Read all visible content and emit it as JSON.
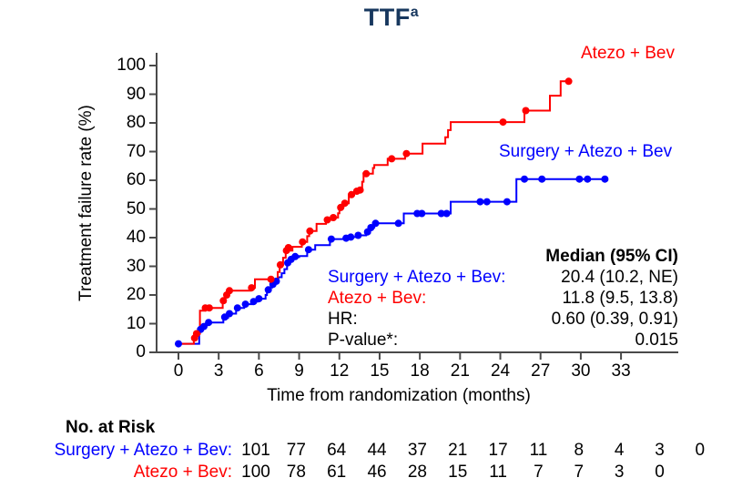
{
  "figure": {
    "title": "TTF",
    "title_superscript": "a"
  },
  "colors": {
    "red": "#FF0000",
    "blue": "#0000FF",
    "navy": "#17375E",
    "axis": "#4A4A4A",
    "black": "#000000"
  },
  "chart_data": {
    "type": "line",
    "subtype": "kaplan-meier-step-curves",
    "title": "TTF",
    "xlabel": "Time from randomization (months)",
    "ylabel": "Treatment failure rate (%)",
    "xlim": [
      0,
      33
    ],
    "ylim": [
      0,
      100
    ],
    "x_ticks": [
      0,
      3,
      6,
      9,
      12,
      15,
      18,
      21,
      24,
      27,
      30,
      33
    ],
    "y_ticks": [
      0,
      10,
      20,
      30,
      40,
      50,
      60,
      70,
      80,
      90,
      100
    ],
    "grid": false,
    "legend_position": "labels-on-plot",
    "series": [
      {
        "name": "Surgery + Atezo + Bev",
        "color_key": "blue",
        "end_time": 32,
        "steps": [
          [
            0,
            3
          ],
          [
            1.55,
            7.5
          ],
          [
            1.8,
            8.6
          ],
          [
            2.0,
            9.5
          ],
          [
            2.2,
            10.4
          ],
          [
            3.35,
            12
          ],
          [
            3.7,
            13.5
          ],
          [
            4.3,
            15.5
          ],
          [
            4.9,
            16.8
          ],
          [
            5.5,
            17.7
          ],
          [
            5.9,
            18.7
          ],
          [
            6.5,
            20
          ],
          [
            6.6,
            21.5
          ],
          [
            6.8,
            22.6
          ],
          [
            7.0,
            23.7
          ],
          [
            7.2,
            24.8
          ],
          [
            7.45,
            26.2
          ],
          [
            7.7,
            27.6
          ],
          [
            7.9,
            29
          ],
          [
            8.1,
            31
          ],
          [
            8.3,
            32
          ],
          [
            8.5,
            33.2
          ],
          [
            9.0,
            33.6
          ],
          [
            9.6,
            35.8
          ],
          [
            10.2,
            37.4
          ],
          [
            11.3,
            39.5
          ],
          [
            12.4,
            39.8
          ],
          [
            12.7,
            40.2
          ],
          [
            13.3,
            40.8
          ],
          [
            14.0,
            41.8
          ],
          [
            14.2,
            43.5
          ],
          [
            14.6,
            45
          ],
          [
            16.8,
            48.4
          ],
          [
            20.3,
            52.5
          ],
          [
            25.2,
            60.4
          ]
        ],
        "censor_marks": [
          [
            0,
            3
          ],
          [
            1.65,
            8
          ],
          [
            1.9,
            9
          ],
          [
            2.25,
            10.4
          ],
          [
            3.45,
            12.3
          ],
          [
            3.8,
            13.5
          ],
          [
            4.4,
            15.5
          ],
          [
            5.0,
            16.8
          ],
          [
            5.6,
            17.7
          ],
          [
            6.0,
            18.7
          ],
          [
            6.7,
            21.8
          ],
          [
            7.05,
            23.7
          ],
          [
            7.3,
            24.8
          ],
          [
            8.15,
            31.2
          ],
          [
            8.4,
            32.4
          ],
          [
            8.7,
            33.4
          ],
          [
            9.7,
            35.8
          ],
          [
            11.4,
            39.5
          ],
          [
            12.5,
            39.8
          ],
          [
            12.85,
            40.2
          ],
          [
            13.4,
            40.8
          ],
          [
            14.1,
            42
          ],
          [
            14.35,
            43.5
          ],
          [
            14.7,
            45
          ],
          [
            16.4,
            45
          ],
          [
            17.8,
            48.4
          ],
          [
            18.15,
            48.4
          ],
          [
            19.6,
            48.4
          ],
          [
            20.0,
            48.4
          ],
          [
            22.5,
            52.5
          ],
          [
            23.0,
            52.5
          ],
          [
            24.5,
            52.5
          ],
          [
            25.8,
            60.4
          ],
          [
            27.1,
            60.4
          ],
          [
            29.9,
            60.4
          ],
          [
            30.5,
            60.4
          ],
          [
            31.8,
            60.4
          ]
        ]
      },
      {
        "name": "Atezo + Bev",
        "color_key": "red",
        "end_time": 29.1,
        "steps": [
          [
            0,
            3
          ],
          [
            1.15,
            5
          ],
          [
            1.3,
            6.5
          ],
          [
            1.6,
            14.5
          ],
          [
            2.0,
            15.5
          ],
          [
            3.3,
            17.5
          ],
          [
            3.5,
            19.5
          ],
          [
            3.75,
            21.5
          ],
          [
            5.4,
            22.5
          ],
          [
            5.7,
            25.5
          ],
          [
            7.4,
            28
          ],
          [
            7.55,
            30.5
          ],
          [
            7.8,
            33
          ],
          [
            8.0,
            35.5
          ],
          [
            8.5,
            36.8
          ],
          [
            9.2,
            38.5
          ],
          [
            9.6,
            40.5
          ],
          [
            9.75,
            42.3
          ],
          [
            10.3,
            44.8
          ],
          [
            11.0,
            46.2
          ],
          [
            11.6,
            47
          ],
          [
            11.9,
            48.5
          ],
          [
            12.0,
            50.5
          ],
          [
            12.3,
            52
          ],
          [
            12.7,
            54.8
          ],
          [
            13.1,
            56.2
          ],
          [
            13.5,
            56.6
          ],
          [
            13.7,
            59.5
          ],
          [
            13.8,
            62.3
          ],
          [
            14.5,
            64.3
          ],
          [
            14.6,
            65.3
          ],
          [
            15.6,
            67.5
          ],
          [
            16.9,
            69.3
          ],
          [
            18.2,
            72.8
          ],
          [
            19.9,
            75
          ],
          [
            20.1,
            77.5
          ],
          [
            20.3,
            80.3
          ],
          [
            25.8,
            84.3
          ],
          [
            27.7,
            89.5
          ],
          [
            28.5,
            94.5
          ]
        ],
        "censor_marks": [
          [
            1.2,
            5
          ],
          [
            1.35,
            6.5
          ],
          [
            2.0,
            15.5
          ],
          [
            2.3,
            15.5
          ],
          [
            3.35,
            18
          ],
          [
            3.6,
            20
          ],
          [
            3.8,
            21.5
          ],
          [
            5.45,
            22.5
          ],
          [
            6.9,
            25.5
          ],
          [
            7.6,
            30.5
          ],
          [
            8.05,
            35.5
          ],
          [
            8.2,
            36.5
          ],
          [
            9.25,
            38.5
          ],
          [
            9.8,
            42.3
          ],
          [
            11.1,
            46.2
          ],
          [
            11.55,
            47
          ],
          [
            12.1,
            50.5
          ],
          [
            12.4,
            52
          ],
          [
            12.9,
            55
          ],
          [
            13.3,
            56.2
          ],
          [
            13.55,
            56.6
          ],
          [
            14.0,
            62.3
          ],
          [
            15.9,
            67.5
          ],
          [
            17.0,
            69.3
          ],
          [
            24.2,
            80.3
          ],
          [
            25.9,
            84.3
          ],
          [
            29.1,
            94.5
          ]
        ]
      }
    ]
  },
  "stats": {
    "header": "Median (95% CI)",
    "rows": [
      {
        "label": "Surgery + Atezo + Bev:",
        "value": "20.4 (10.2, NE)",
        "color_key": "blue"
      },
      {
        "label": "Atezo + Bev:",
        "value": "11.8 (9.5, 13.8)",
        "color_key": "red"
      },
      {
        "label": "HR:",
        "value": "0.60 (0.39, 0.91)",
        "color_key": "black"
      },
      {
        "label": "P-value*:",
        "value": "0.015",
        "color_key": "black"
      }
    ]
  },
  "risk_table": {
    "title": "No. at Risk",
    "rows": [
      {
        "label": "Surgery + Atezo + Bev:",
        "color_key": "blue",
        "counts": [
          101,
          77,
          64,
          44,
          37,
          21,
          17,
          11,
          8,
          4,
          3,
          0
        ]
      },
      {
        "label": "Atezo + Bev:",
        "color_key": "red",
        "counts": [
          100,
          78,
          61,
          46,
          28,
          15,
          11,
          7,
          7,
          3,
          0
        ]
      }
    ]
  }
}
